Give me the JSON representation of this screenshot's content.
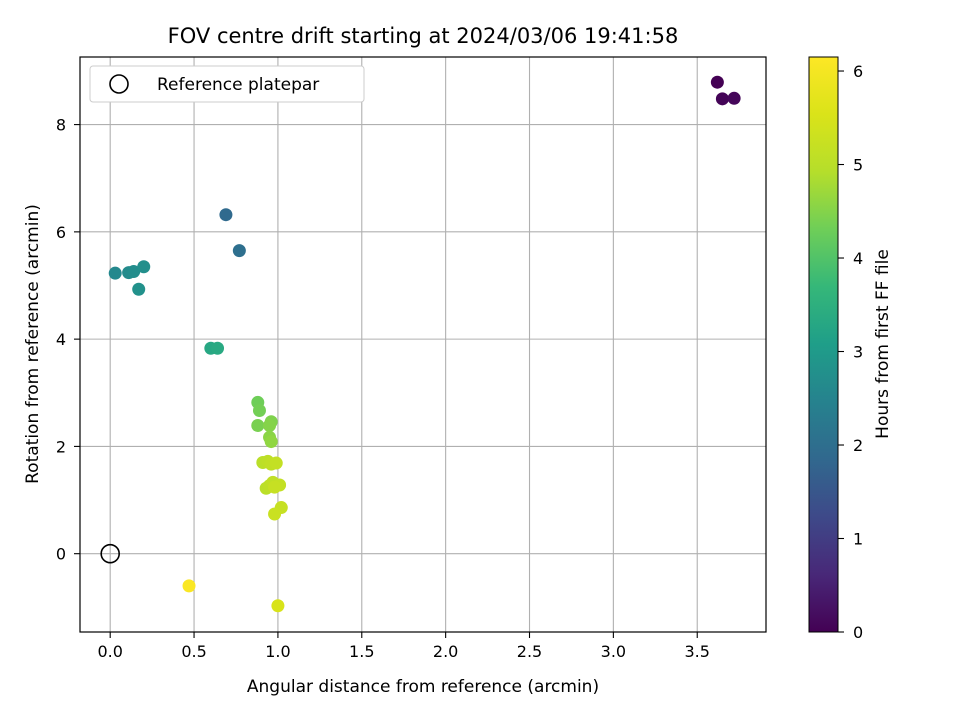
{
  "chart_data": {
    "type": "scatter",
    "title": "FOV centre drift starting at 2024/03/06 19:41:58",
    "xlabel": "Angular distance from reference (arcmin)",
    "ylabel": "Rotation from reference (arcmin)",
    "xlim": [
      -0.18,
      3.91
    ],
    "ylim": [
      -1.46,
      9.26
    ],
    "xticks": [
      "0.0",
      "0.5",
      "1.0",
      "1.5",
      "2.0",
      "2.5",
      "3.0",
      "3.5"
    ],
    "yticks": [
      "0",
      "2",
      "4",
      "6",
      "8"
    ],
    "grid": true,
    "legend": {
      "placement": "top-left",
      "entries": [
        "Reference platepar"
      ]
    },
    "reference_point": {
      "x": 0.0,
      "y": 0.0
    },
    "colorbar": {
      "label": "Hours from first FF file",
      "min": 0,
      "max": 6.15,
      "ticks": [
        "0",
        "1",
        "2",
        "3",
        "4",
        "5",
        "6"
      ],
      "colormap": "viridis"
    },
    "points": [
      {
        "x": 3.62,
        "y": 8.79,
        "c": 0.0
      },
      {
        "x": 3.65,
        "y": 8.48,
        "c": 0.05
      },
      {
        "x": 3.72,
        "y": 8.49,
        "c": 0.1
      },
      {
        "x": 0.69,
        "y": 6.32,
        "c": 1.9
      },
      {
        "x": 0.77,
        "y": 5.65,
        "c": 2.0
      },
      {
        "x": 0.03,
        "y": 5.23,
        "c": 2.6
      },
      {
        "x": 0.11,
        "y": 5.24,
        "c": 2.65
      },
      {
        "x": 0.14,
        "y": 5.26,
        "c": 2.7
      },
      {
        "x": 0.2,
        "y": 5.35,
        "c": 2.75
      },
      {
        "x": 0.17,
        "y": 4.93,
        "c": 2.8
      },
      {
        "x": 0.6,
        "y": 3.83,
        "c": 3.3
      },
      {
        "x": 0.64,
        "y": 3.83,
        "c": 3.35
      },
      {
        "x": 0.88,
        "y": 2.82,
        "c": 4.3
      },
      {
        "x": 0.89,
        "y": 2.67,
        "c": 4.35
      },
      {
        "x": 0.88,
        "y": 2.39,
        "c": 4.4
      },
      {
        "x": 0.96,
        "y": 2.46,
        "c": 4.45
      },
      {
        "x": 0.95,
        "y": 2.39,
        "c": 4.5
      },
      {
        "x": 0.95,
        "y": 2.17,
        "c": 4.55
      },
      {
        "x": 0.96,
        "y": 2.09,
        "c": 4.6
      },
      {
        "x": 0.91,
        "y": 1.7,
        "c": 5.0
      },
      {
        "x": 0.94,
        "y": 1.72,
        "c": 5.05
      },
      {
        "x": 0.96,
        "y": 1.67,
        "c": 5.1
      },
      {
        "x": 0.99,
        "y": 1.69,
        "c": 5.15
      },
      {
        "x": 0.93,
        "y": 1.22,
        "c": 5.0
      },
      {
        "x": 0.95,
        "y": 1.27,
        "c": 5.05
      },
      {
        "x": 0.97,
        "y": 1.33,
        "c": 5.1
      },
      {
        "x": 1.01,
        "y": 1.28,
        "c": 5.15
      },
      {
        "x": 0.98,
        "y": 1.24,
        "c": 5.2
      },
      {
        "x": 1.02,
        "y": 0.86,
        "c": 5.2
      },
      {
        "x": 0.98,
        "y": 0.74,
        "c": 5.25
      },
      {
        "x": 1.0,
        "y": -0.97,
        "c": 5.5
      },
      {
        "x": 0.47,
        "y": -0.6,
        "c": 6.1
      }
    ]
  }
}
